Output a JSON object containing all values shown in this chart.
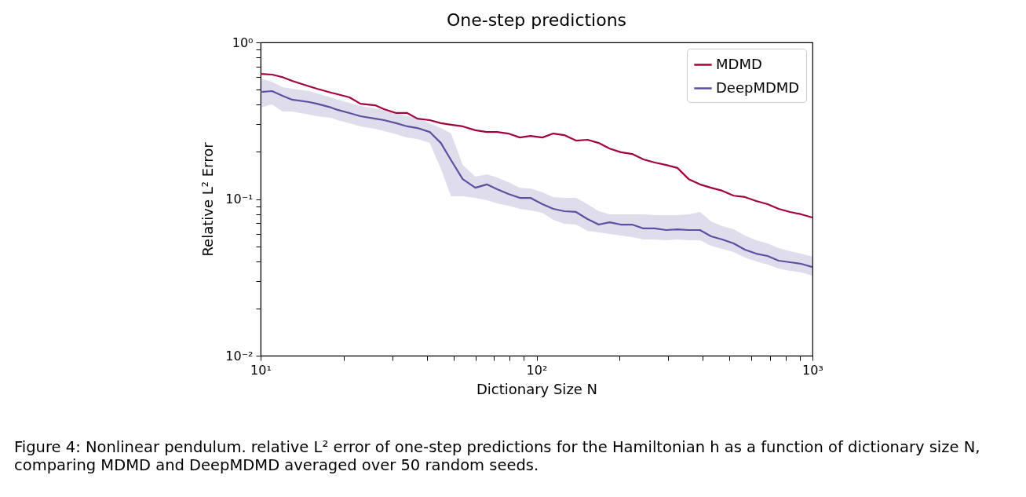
{
  "chart_data": {
    "type": "line",
    "title": "One-step predictions",
    "xlabel": "Dictionary Size N",
    "ylabel": "Relative L² Error",
    "log": "xy",
    "legend": "top right",
    "grid": false,
    "xlim": [
      10,
      1000
    ],
    "xticks": [
      {
        "value": 10,
        "label": "10¹"
      },
      {
        "value": 20,
        "label": null
      },
      {
        "value": 30,
        "label": null
      },
      {
        "value": 40,
        "label": null
      },
      {
        "value": 50,
        "label": null
      },
      {
        "value": 60,
        "label": null
      },
      {
        "value": 70,
        "label": null
      },
      {
        "value": 80,
        "label": null
      },
      {
        "value": 90,
        "label": null
      },
      {
        "value": 100,
        "label": "10²"
      },
      {
        "value": 200,
        "label": null
      },
      {
        "value": 300,
        "label": null
      },
      {
        "value": 400,
        "label": null
      },
      {
        "value": 500,
        "label": null
      },
      {
        "value": 600,
        "label": null
      },
      {
        "value": 700,
        "label": null
      },
      {
        "value": 800,
        "label": null
      },
      {
        "value": 900,
        "label": null
      },
      {
        "value": 1000,
        "label": "10³"
      }
    ],
    "ylim": [
      0.01,
      1
    ],
    "yticks": [
      {
        "value": 0.01,
        "label": "10⁻²"
      },
      {
        "value": 0.02,
        "label": null
      },
      {
        "value": 0.03,
        "label": null
      },
      {
        "value": 0.04,
        "label": null
      },
      {
        "value": 0.05,
        "label": null
      },
      {
        "value": 0.06,
        "label": null
      },
      {
        "value": 0.07,
        "label": null
      },
      {
        "value": 0.08,
        "label": null
      },
      {
        "value": 0.09,
        "label": null
      },
      {
        "value": 0.1,
        "label": "10⁻¹"
      },
      {
        "value": 0.2,
        "label": null
      },
      {
        "value": 0.3,
        "label": null
      },
      {
        "value": 0.4,
        "label": null
      },
      {
        "value": 0.5,
        "label": null
      },
      {
        "value": 0.6,
        "label": null
      },
      {
        "value": 0.7,
        "label": null
      },
      {
        "value": 0.8,
        "label": null
      },
      {
        "value": 0.9,
        "label": null
      },
      {
        "value": 1,
        "label": "10⁰"
      }
    ],
    "x": [
      10,
      11,
      12,
      13,
      15,
      16,
      18,
      19,
      21,
      23,
      26,
      28,
      31,
      34,
      37,
      41,
      45,
      49,
      54,
      60,
      66,
      72,
      79,
      87,
      95,
      105,
      115,
      126,
      139,
      153,
      168,
      184,
      202,
      222,
      244,
      268,
      295,
      324,
      356,
      391,
      429,
      471,
      518,
      569,
      625,
      687,
      754,
      829,
      910,
      1000
    ],
    "series": [
      {
        "name": "MDMD",
        "color": "#a2023f",
        "values": [
          0.63,
          0.623,
          0.6,
          0.568,
          0.524,
          0.506,
          0.478,
          0.467,
          0.446,
          0.406,
          0.397,
          0.375,
          0.354,
          0.354,
          0.326,
          0.319,
          0.305,
          0.298,
          0.291,
          0.275,
          0.268,
          0.268,
          0.262,
          0.247,
          0.253,
          0.247,
          0.262,
          0.256,
          0.236,
          0.239,
          0.228,
          0.21,
          0.199,
          0.194,
          0.179,
          0.171,
          0.165,
          0.158,
          0.134,
          0.124,
          0.118,
          0.113,
          0.105,
          0.103,
          0.0972,
          0.0928,
          0.0866,
          0.0827,
          0.0799,
          0.0762
        ]
      },
      {
        "name": "DeepMDMD",
        "color": "#5e4fa2",
        "values": [
          0.483,
          0.489,
          0.456,
          0.431,
          0.416,
          0.406,
          0.384,
          0.371,
          0.354,
          0.338,
          0.326,
          0.319,
          0.305,
          0.291,
          0.284,
          0.268,
          0.228,
          0.177,
          0.134,
          0.118,
          0.124,
          0.1155,
          0.1078,
          0.1017,
          0.1017,
          0.0928,
          0.0866,
          0.0836,
          0.0827,
          0.0745,
          0.0687,
          0.0711,
          0.0687,
          0.0687,
          0.0649,
          0.0649,
          0.0634,
          0.0641,
          0.0634,
          0.0634,
          0.0578,
          0.0552,
          0.0521,
          0.0475,
          0.0448,
          0.0433,
          0.0404,
          0.0395,
          0.0386,
          0.0368
        ],
        "upper": [
          0.588,
          0.56,
          0.518,
          0.506,
          0.489,
          0.472,
          0.446,
          0.431,
          0.411,
          0.393,
          0.379,
          0.371,
          0.354,
          0.338,
          0.33,
          0.305,
          0.284,
          0.262,
          0.165,
          0.139,
          0.1438,
          0.1373,
          0.1281,
          0.118,
          0.1168,
          0.1103,
          0.1029,
          0.1017,
          0.1017,
          0.0928,
          0.0836,
          0.0799,
          0.0799,
          0.0799,
          0.0799,
          0.0789,
          0.0789,
          0.0789,
          0.0799,
          0.0827,
          0.072,
          0.0671,
          0.0641,
          0.0585,
          0.0546,
          0.0521,
          0.0486,
          0.0464,
          0.0448,
          0.0428
        ],
        "lower": [
          0.384,
          0.402,
          0.362,
          0.362,
          0.346,
          0.338,
          0.33,
          0.319,
          0.305,
          0.291,
          0.281,
          0.271,
          0.259,
          0.247,
          0.242,
          0.228,
          0.156,
          0.1041,
          0.1041,
          0.1017,
          0.0983,
          0.0938,
          0.0907,
          0.0866,
          0.0846,
          0.0818,
          0.0737,
          0.0695,
          0.0687,
          0.0626,
          0.0612,
          0.0598,
          0.0585,
          0.0571,
          0.0552,
          0.0552,
          0.0546,
          0.0552,
          0.0546,
          0.0546,
          0.0503,
          0.048,
          0.0459,
          0.0423,
          0.04,
          0.0382,
          0.036,
          0.0348,
          0.034,
          0.0325
        ]
      }
    ],
    "annotations": [
      "Figure 4: Nonlinear pendulum. relative L² error of one-step predictions for the Hamiltonian h as a function of dictionary size N, comparing MDMD and DeepMDMD averaged over 50 random seeds."
    ]
  }
}
